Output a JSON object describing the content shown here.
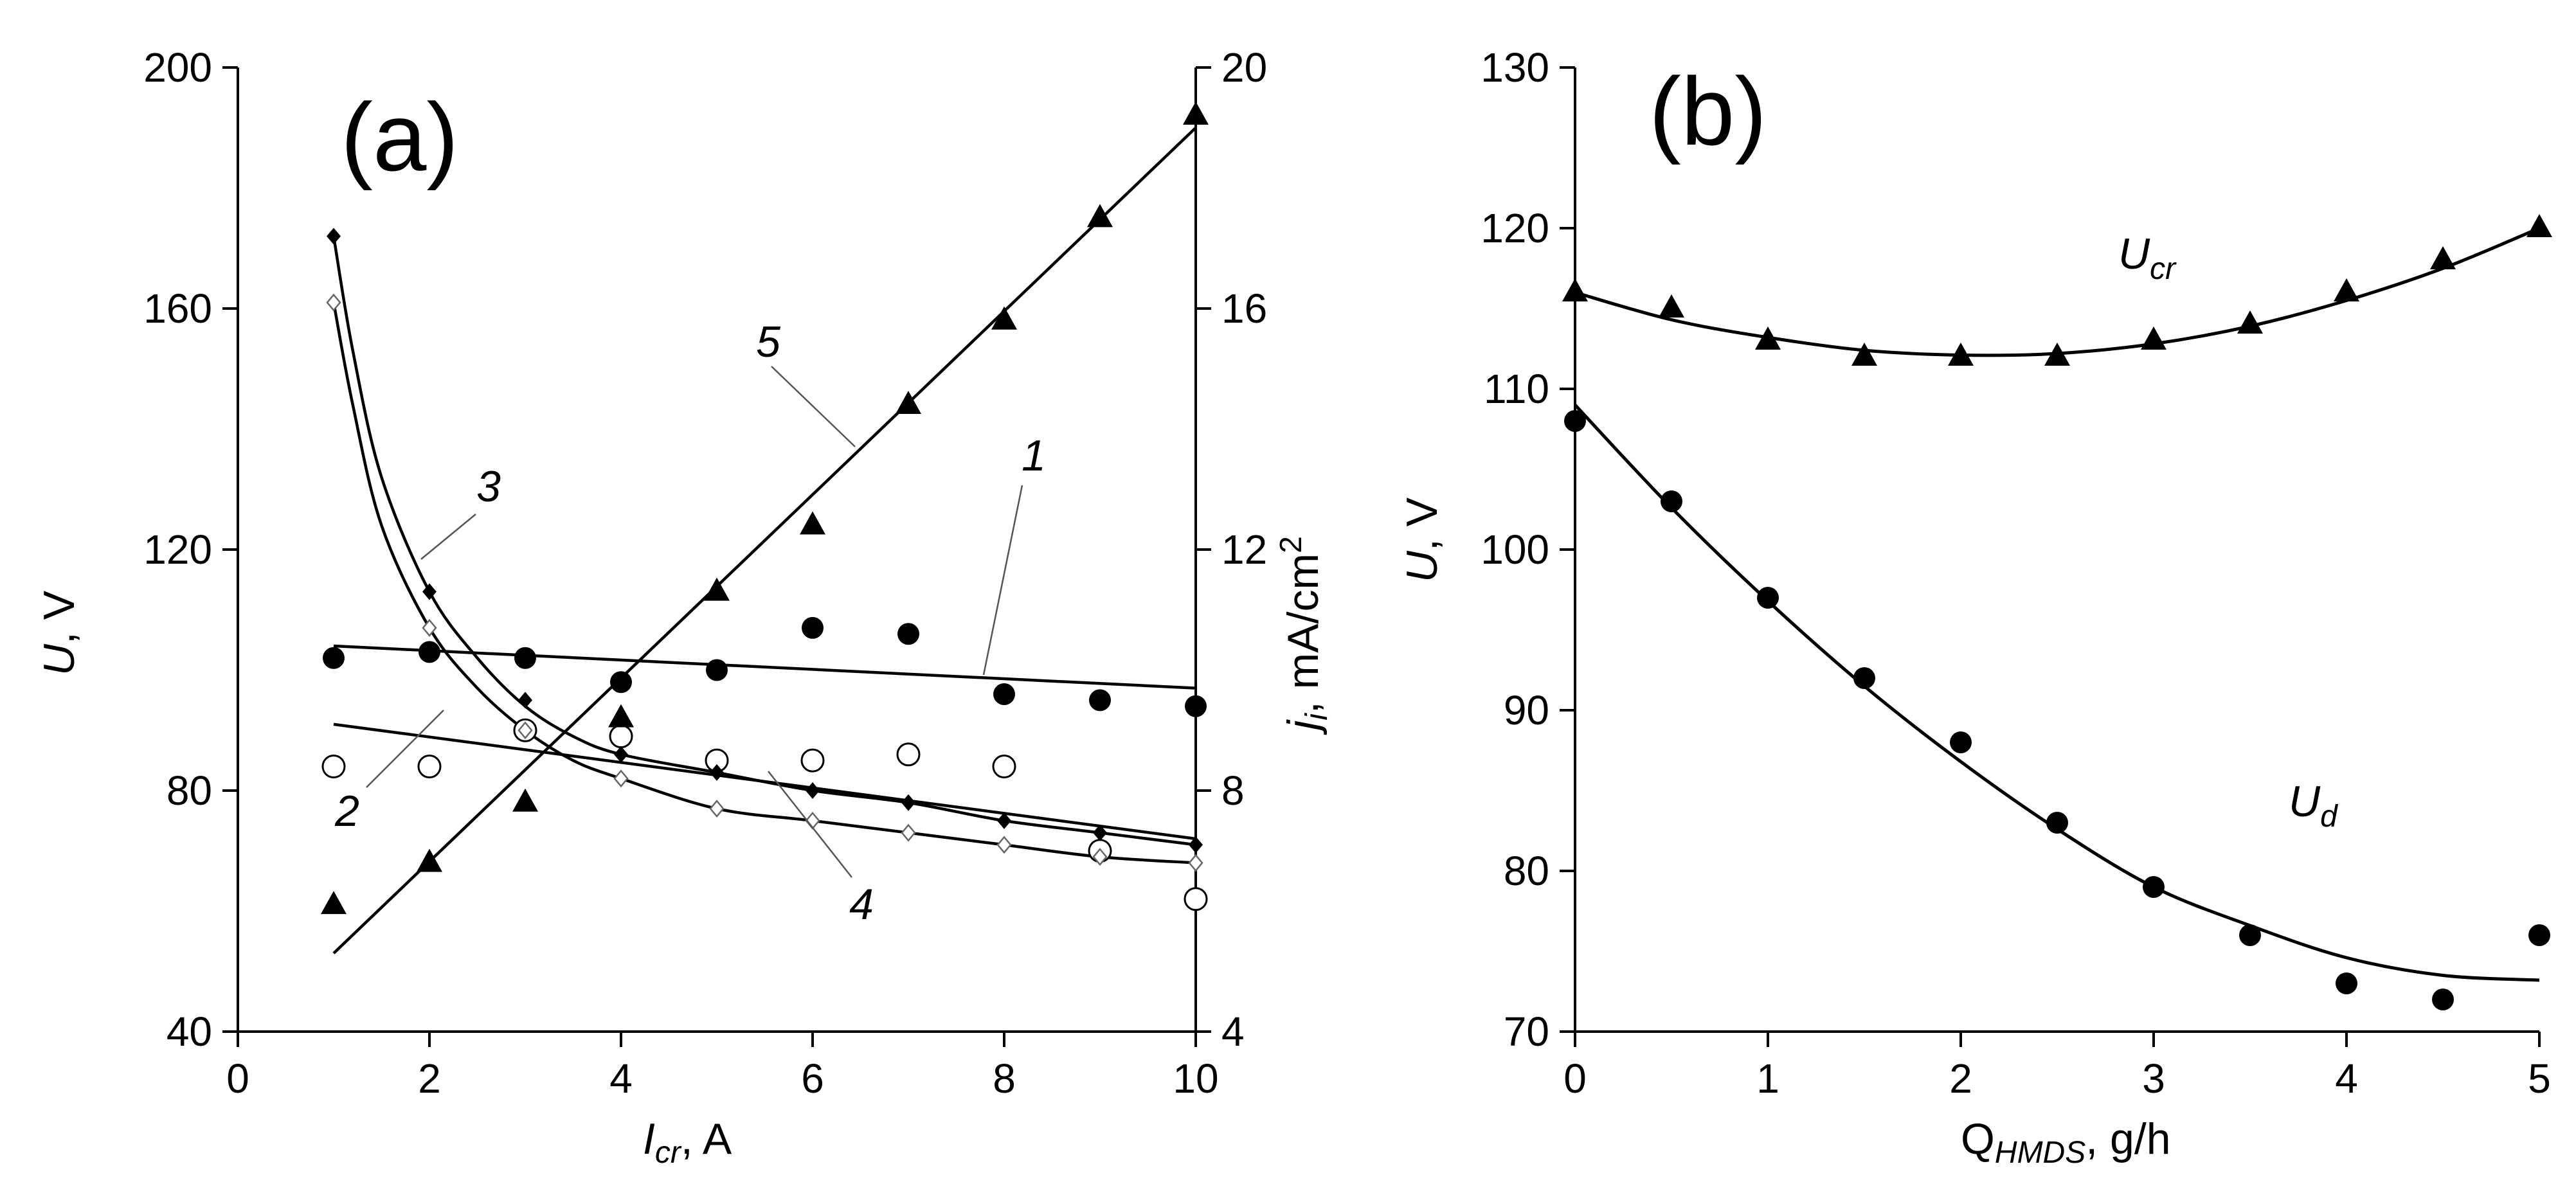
{
  "chart_data": [
    {
      "panel_label": "(a)",
      "type": "scatter",
      "x_axis": {
        "label_main": "I",
        "label_sub": "cr",
        "label_unit": ", A",
        "range": [
          0,
          10
        ],
        "ticks": [
          0,
          2,
          4,
          6,
          8,
          10
        ]
      },
      "y_axis_left": {
        "label_main": "U",
        "label_unit": ", V",
        "range": [
          40,
          200
        ],
        "ticks": [
          40,
          80,
          120,
          160,
          200
        ]
      },
      "y_axis_right": {
        "label_main": "j",
        "label_sub": "i",
        "label_unit": ", mA/cm",
        "label_sup": "2",
        "range": [
          4,
          20
        ],
        "ticks": [
          4,
          8,
          12,
          16,
          20
        ]
      },
      "series": [
        {
          "name": "1",
          "axis": "left",
          "marker": "filled-circle",
          "x": [
            1,
            2,
            3,
            4,
            5,
            6,
            7,
            8,
            9,
            10
          ],
          "y": [
            102,
            103,
            102,
            98,
            100,
            107,
            106,
            96,
            95,
            94
          ],
          "fit": {
            "kind": "linear",
            "x": [
              1,
              10
            ],
            "y": [
              104,
              97
            ]
          }
        },
        {
          "name": "2",
          "axis": "left",
          "marker": "open-circle",
          "x": [
            1,
            2,
            3,
            4,
            5,
            6,
            7,
            8,
            9,
            10
          ],
          "y": [
            84,
            84,
            90,
            89,
            85,
            85,
            86,
            84,
            70,
            62
          ],
          "fit": {
            "kind": "linear",
            "x": [
              1,
              10
            ],
            "y": [
              91,
              72
            ]
          }
        },
        {
          "name": "3",
          "axis": "left",
          "marker": "filled-diamond",
          "x": [
            1,
            2,
            3,
            4,
            5,
            6,
            7,
            8,
            9,
            10
          ],
          "y": [
            172,
            113,
            95,
            86,
            83,
            80,
            78,
            75,
            73,
            71
          ],
          "fit": {
            "kind": "curve",
            "x": [
              1,
              1.2,
              1.5,
              2,
              2.5,
              3,
              3.5,
              4,
              5,
              6,
              7,
              8,
              9,
              10
            ],
            "y": [
              172,
              153,
              132,
              113,
              102,
              94,
              89,
              86,
              83,
              80,
              78,
              75,
              73,
              71
            ]
          }
        },
        {
          "name": "4",
          "axis": "left",
          "marker": "open-diamond",
          "x": [
            1,
            2,
            3,
            4,
            5,
            6,
            7,
            8,
            9,
            10
          ],
          "y": [
            161,
            107,
            90,
            82,
            77,
            75,
            73,
            71,
            69,
            68
          ],
          "fit": {
            "kind": "curve",
            "x": [
              1,
              1.2,
              1.5,
              2,
              2.5,
              3,
              3.5,
              4,
              5,
              6,
              7,
              8,
              9,
              10
            ],
            "y": [
              161,
              144,
              124,
              107,
              97,
              90,
              85,
              82,
              77,
              75,
              73,
              71,
              69,
              68
            ]
          }
        },
        {
          "name": "5",
          "axis": "right",
          "marker": "filled-triangle",
          "x": [
            1,
            2,
            3,
            4,
            5,
            6,
            7,
            8,
            9,
            10
          ],
          "y": [
            6.1,
            6.8,
            7.8,
            9.2,
            11.3,
            12.4,
            14.4,
            15.8,
            17.5,
            19.2
          ],
          "fit": {
            "kind": "linear",
            "x": [
              1,
              10
            ],
            "y": [
              5.3,
              19.0
            ]
          }
        }
      ],
      "curve_labels": [
        "1",
        "2",
        "3",
        "4",
        "5"
      ]
    },
    {
      "panel_label": "(b)",
      "type": "scatter",
      "x_axis": {
        "label_main": "Q",
        "label_sub": "HMDS",
        "label_unit": ", g/h",
        "range": [
          0,
          5
        ],
        "ticks": [
          0,
          1,
          2,
          3,
          4,
          5
        ]
      },
      "y_axis_left": {
        "label_main": "U",
        "label_unit": ", V",
        "range": [
          70,
          130
        ],
        "ticks": [
          70,
          80,
          90,
          100,
          110,
          120,
          130
        ]
      },
      "series": [
        {
          "name": "U_cr",
          "label_main": "U",
          "label_sub": "cr",
          "marker": "filled-triangle",
          "x": [
            0,
            0.5,
            1,
            1.5,
            2,
            2.5,
            3,
            3.5,
            4,
            4.5,
            5
          ],
          "y": [
            116,
            115,
            113,
            112,
            112,
            112,
            113,
            114,
            116,
            118,
            120
          ],
          "fit": {
            "kind": "curve",
            "x": [
              0,
              0.5,
              1,
              1.5,
              2,
              2.5,
              3,
              3.5,
              4,
              4.5,
              5
            ],
            "y": [
              116,
              114.3,
              113.2,
              112.4,
              112.1,
              112.2,
              112.8,
              113.9,
              115.5,
              117.5,
              120
            ]
          }
        },
        {
          "name": "U_d",
          "label_main": "U",
          "label_sub": "d",
          "marker": "filled-circle",
          "x": [
            0,
            0.5,
            1,
            1.5,
            2,
            2.5,
            3,
            3.5,
            4,
            4.5,
            5
          ],
          "y": [
            108,
            103,
            97,
            92,
            88,
            83,
            79,
            76,
            73,
            72,
            76
          ],
          "fit": {
            "kind": "curve",
            "x": [
              0,
              0.5,
              1,
              1.5,
              2,
              2.5,
              3,
              3.5,
              4,
              4.5,
              5
            ],
            "y": [
              109,
              102.6,
              96.8,
              91.5,
              86.8,
              82.6,
              79,
              76.6,
              74.6,
              73.5,
              73.2
            ]
          }
        }
      ]
    }
  ]
}
